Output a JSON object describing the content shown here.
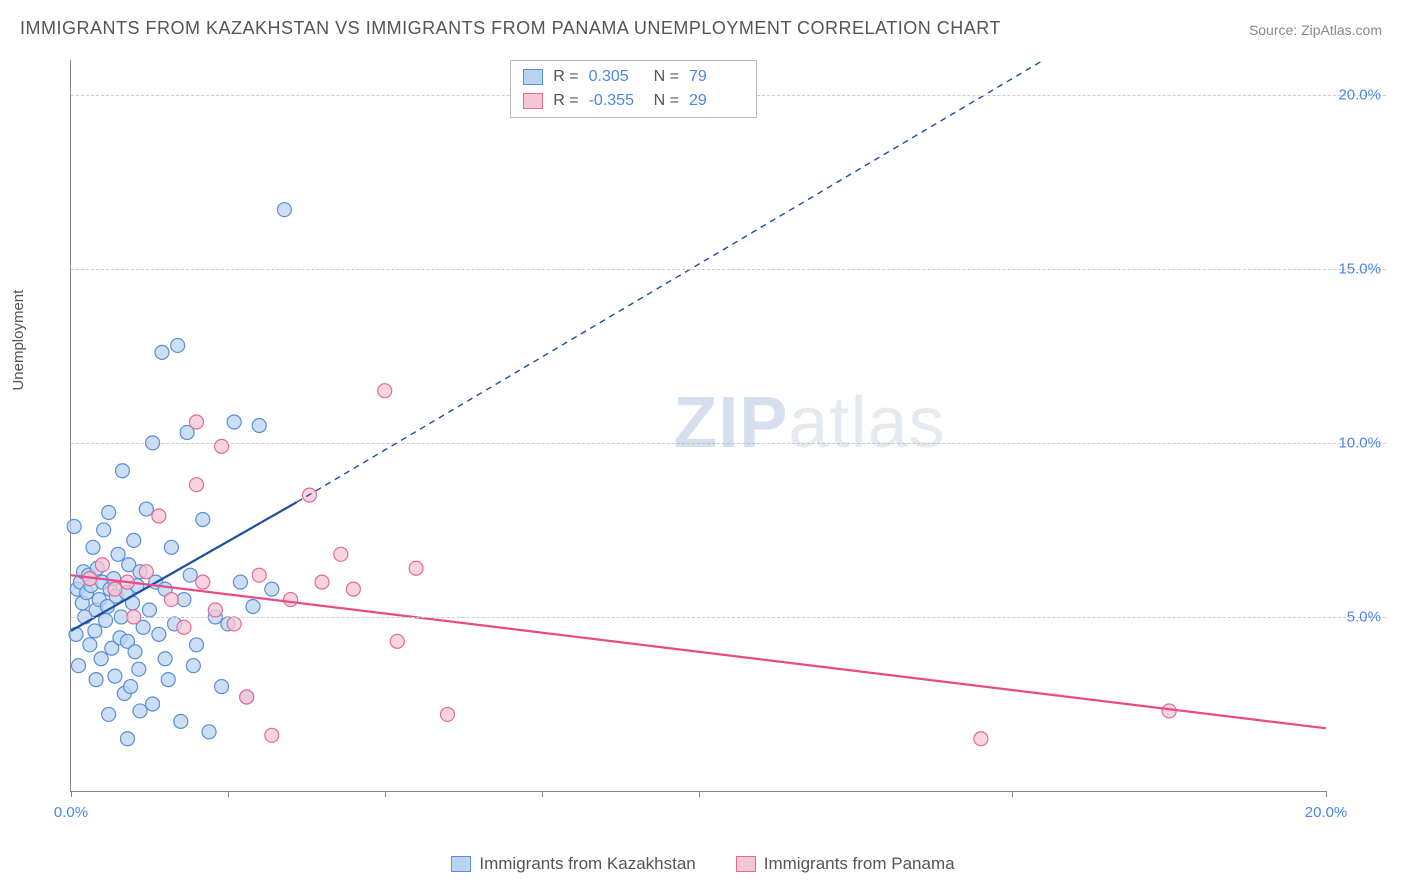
{
  "title": "IMMIGRANTS FROM KAZAKHSTAN VS IMMIGRANTS FROM PANAMA UNEMPLOYMENT CORRELATION CHART",
  "source": "Source: ZipAtlas.com",
  "ylabel": "Unemployment",
  "watermark_a": "ZIP",
  "watermark_b": "atlas",
  "chart": {
    "type": "scatter",
    "xlim": [
      0,
      20
    ],
    "ylim": [
      0,
      21
    ],
    "y_ticks": [
      5,
      10,
      15,
      20
    ],
    "y_tick_labels": [
      "5.0%",
      "10.0%",
      "15.0%",
      "20.0%"
    ],
    "x_ticks": [
      0,
      2.5,
      5,
      7.5,
      10,
      15,
      20
    ],
    "x_tick_labels_show": {
      "0": "0.0%",
      "20": "20.0%"
    },
    "background_color": "#ffffff",
    "grid_color": "#cccccc",
    "axis_color": "#888888",
    "tick_label_color": "#4a86e8",
    "marker_radius": 7,
    "marker_stroke_width": 1.2,
    "trend_solid_width": 2.2,
    "trend_dash_width": 1.4,
    "trend_dash_pattern": "6,5",
    "series": [
      {
        "name": "Immigrants from Kazakhstan",
        "fill": "#b9d3f0",
        "stroke": "#5a8fd6",
        "trend_color": "#1c4fa1",
        "r_label": "R =",
        "r_value": "0.305",
        "n_label": "N =",
        "n_value": "79",
        "trend_solid": {
          "x1": 0,
          "y1": 4.6,
          "x2": 3.6,
          "y2": 8.3
        },
        "trend_dash": {
          "x1": 3.6,
          "y1": 8.3,
          "x2": 15.5,
          "y2": 21
        },
        "points": [
          [
            0.1,
            5.8
          ],
          [
            0.15,
            6.0
          ],
          [
            0.18,
            5.4
          ],
          [
            0.2,
            6.3
          ],
          [
            0.22,
            5.0
          ],
          [
            0.25,
            5.7
          ],
          [
            0.28,
            6.2
          ],
          [
            0.3,
            4.2
          ],
          [
            0.32,
            5.9
          ],
          [
            0.35,
            7.0
          ],
          [
            0.38,
            4.6
          ],
          [
            0.4,
            5.2
          ],
          [
            0.42,
            6.4
          ],
          [
            0.45,
            5.5
          ],
          [
            0.48,
            3.8
          ],
          [
            0.5,
            6.0
          ],
          [
            0.52,
            7.5
          ],
          [
            0.55,
            4.9
          ],
          [
            0.58,
            5.3
          ],
          [
            0.6,
            8.0
          ],
          [
            0.62,
            5.8
          ],
          [
            0.65,
            4.1
          ],
          [
            0.68,
            6.1
          ],
          [
            0.7,
            3.3
          ],
          [
            0.72,
            5.6
          ],
          [
            0.75,
            6.8
          ],
          [
            0.78,
            4.4
          ],
          [
            0.8,
            5.0
          ],
          [
            0.82,
            9.2
          ],
          [
            0.85,
            2.8
          ],
          [
            0.88,
            5.7
          ],
          [
            0.9,
            4.3
          ],
          [
            0.92,
            6.5
          ],
          [
            0.95,
            3.0
          ],
          [
            0.98,
            5.4
          ],
          [
            1.0,
            7.2
          ],
          [
            1.02,
            4.0
          ],
          [
            1.05,
            5.9
          ],
          [
            1.08,
            3.5
          ],
          [
            1.1,
            6.3
          ],
          [
            1.15,
            4.7
          ],
          [
            1.2,
            8.1
          ],
          [
            1.25,
            5.2
          ],
          [
            1.3,
            2.5
          ],
          [
            1.35,
            6.0
          ],
          [
            1.4,
            4.5
          ],
          [
            1.45,
            12.6
          ],
          [
            1.5,
            5.8
          ],
          [
            1.55,
            3.2
          ],
          [
            1.6,
            7.0
          ],
          [
            1.65,
            4.8
          ],
          [
            1.7,
            12.8
          ],
          [
            1.75,
            2.0
          ],
          [
            1.8,
            5.5
          ],
          [
            1.85,
            10.3
          ],
          [
            1.9,
            6.2
          ],
          [
            1.95,
            3.6
          ],
          [
            2.0,
            4.2
          ],
          [
            2.1,
            7.8
          ],
          [
            2.2,
            1.7
          ],
          [
            2.3,
            5.0
          ],
          [
            2.4,
            3.0
          ],
          [
            2.5,
            4.8
          ],
          [
            2.6,
            10.6
          ],
          [
            2.7,
            6.0
          ],
          [
            2.8,
            2.7
          ],
          [
            2.9,
            5.3
          ],
          [
            3.0,
            10.5
          ],
          [
            3.2,
            5.8
          ],
          [
            3.4,
            16.7
          ],
          [
            0.05,
            7.6
          ],
          [
            0.08,
            4.5
          ],
          [
            0.12,
            3.6
          ],
          [
            0.4,
            3.2
          ],
          [
            0.6,
            2.2
          ],
          [
            0.9,
            1.5
          ],
          [
            1.1,
            2.3
          ],
          [
            1.3,
            10.0
          ],
          [
            1.5,
            3.8
          ]
        ]
      },
      {
        "name": "Immigrants from Panama",
        "fill": "#f5c6d6",
        "stroke": "#e26a97",
        "trend_color": "#e94b87",
        "r_label": "R =",
        "r_value": "-0.355",
        "n_label": "N =",
        "n_value": "29",
        "trend_solid": {
          "x1": 0,
          "y1": 6.2,
          "x2": 20,
          "y2": 1.8
        },
        "trend_dash": null,
        "points": [
          [
            0.3,
            6.1
          ],
          [
            0.5,
            6.5
          ],
          [
            0.7,
            5.8
          ],
          [
            0.9,
            6.0
          ],
          [
            1.0,
            5.0
          ],
          [
            1.2,
            6.3
          ],
          [
            1.4,
            7.9
          ],
          [
            1.6,
            5.5
          ],
          [
            1.8,
            4.7
          ],
          [
            2.0,
            8.8
          ],
          [
            2.1,
            6.0
          ],
          [
            2.3,
            5.2
          ],
          [
            2.4,
            9.9
          ],
          [
            2.6,
            4.8
          ],
          [
            2.8,
            2.7
          ],
          [
            3.0,
            6.2
          ],
          [
            3.2,
            1.6
          ],
          [
            3.5,
            5.5
          ],
          [
            3.8,
            8.5
          ],
          [
            4.0,
            6.0
          ],
          [
            4.3,
            6.8
          ],
          [
            4.5,
            5.8
          ],
          [
            5.0,
            11.5
          ],
          [
            5.2,
            4.3
          ],
          [
            5.5,
            6.4
          ],
          [
            6.0,
            2.2
          ],
          [
            14.5,
            1.5
          ],
          [
            17.5,
            2.3
          ],
          [
            2.0,
            10.6
          ]
        ]
      }
    ]
  },
  "bottom_legend": [
    {
      "swatch_fill": "#b9d3f0",
      "swatch_stroke": "#5a8fd6",
      "label": "Immigrants from Kazakhstan"
    },
    {
      "swatch_fill": "#f5c6d6",
      "swatch_stroke": "#e26a97",
      "label": "Immigrants from Panama"
    }
  ]
}
